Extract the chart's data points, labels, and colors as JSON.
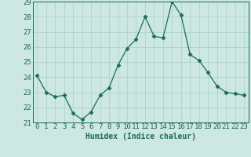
{
  "x": [
    0,
    1,
    2,
    3,
    4,
    5,
    6,
    7,
    8,
    9,
    10,
    11,
    12,
    13,
    14,
    15,
    16,
    17,
    18,
    19,
    20,
    21,
    22,
    23
  ],
  "y": [
    24.1,
    23.0,
    22.7,
    22.8,
    21.6,
    21.2,
    21.7,
    22.8,
    23.3,
    24.8,
    25.9,
    26.5,
    28.0,
    26.7,
    26.6,
    29.0,
    28.1,
    25.5,
    25.1,
    24.3,
    23.4,
    23.0,
    22.9,
    22.8
  ],
  "line_color": "#1a6b5a",
  "marker": "D",
  "marker_size": 2.5,
  "bg_color": "#cde8e0",
  "grid_color": "#a8cfc5",
  "xlabel": "Humidex (Indice chaleur)",
  "ylim": [
    21,
    29
  ],
  "xlim": [
    -0.5,
    23.5
  ],
  "yticks": [
    21,
    22,
    23,
    24,
    25,
    26,
    27,
    28,
    29
  ],
  "xticks": [
    0,
    1,
    2,
    3,
    4,
    5,
    6,
    7,
    8,
    9,
    10,
    11,
    12,
    13,
    14,
    15,
    16,
    17,
    18,
    19,
    20,
    21,
    22,
    23
  ],
  "tick_color": "#1a6b5a",
  "label_fontsize": 7,
  "tick_fontsize": 6.5
}
